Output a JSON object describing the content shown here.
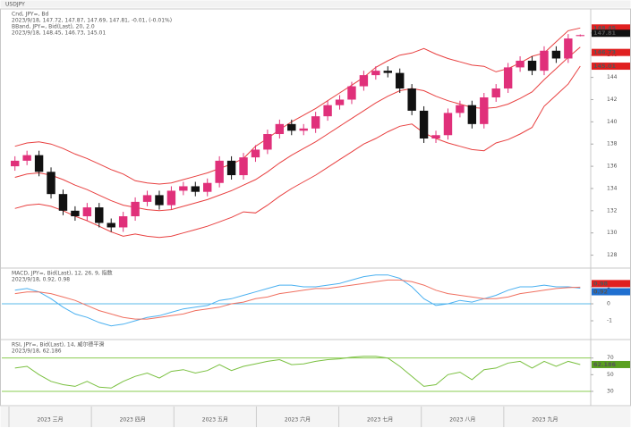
{
  "header": "USDJPY",
  "x_axis": {
    "months": [
      "2023 三月",
      "2023 四月",
      "2023 五月",
      "2023 六月",
      "2023 七月",
      "2023 八月",
      "2023 九月"
    ]
  },
  "chart_data": [
    {
      "type": "candlestick",
      "legend": [
        {
          "text": "Cnd, JPY=, Bd",
          "color": "#333333"
        },
        {
          "text": "2023/9/18, 147.72, 147.87, 147.69, 147.81, -0.01, (-0.01%)",
          "color": "#cc2222"
        },
        {
          "text": "BBand, JPY=, Bid(Last), 20, 2.0",
          "color": "#e84040"
        },
        {
          "text": "2023/9/18, 148.45, 146.73, 145.01",
          "color": "#e84040"
        }
      ],
      "color_up": "#e0307a",
      "color_down": "#111111",
      "open": [
        136.0,
        136.5,
        137.0,
        135.5,
        133.5,
        132.0,
        131.5,
        132.3,
        130.9,
        130.5,
        131.5,
        132.8,
        133.4,
        132.5,
        133.8,
        134.2,
        133.7,
        134.5,
        136.5,
        135.2,
        136.8,
        137.5,
        138.9,
        139.8,
        139.2,
        139.4,
        140.5,
        141.5,
        142.0,
        143.2,
        144.2,
        144.6,
        144.4,
        143.0,
        141.0,
        138.5,
        138.8,
        140.8,
        141.5,
        139.8,
        142.2,
        143.0,
        144.9,
        145.5,
        144.6,
        146.4,
        145.7,
        147.72
      ],
      "high": [
        136.9,
        137.4,
        137.4,
        135.9,
        133.9,
        132.4,
        132.7,
        132.7,
        131.3,
        131.9,
        133.2,
        133.8,
        133.8,
        134.2,
        134.6,
        134.6,
        134.9,
        136.9,
        136.9,
        137.2,
        137.9,
        139.3,
        140.2,
        140.2,
        139.8,
        140.9,
        141.9,
        142.4,
        143.6,
        144.6,
        145.0,
        145.0,
        144.8,
        143.4,
        141.4,
        139.2,
        141.2,
        141.9,
        141.9,
        142.6,
        143.4,
        145.3,
        145.9,
        145.9,
        146.8,
        146.8,
        147.9,
        147.87
      ],
      "low": [
        135.6,
        136.1,
        135.1,
        133.1,
        131.6,
        131.1,
        131.1,
        130.5,
        130.1,
        130.1,
        131.1,
        132.4,
        132.1,
        132.1,
        133.4,
        133.3,
        133.3,
        134.1,
        134.8,
        134.8,
        136.4,
        137.1,
        138.5,
        138.8,
        138.8,
        139.0,
        140.1,
        141.1,
        141.6,
        142.8,
        143.8,
        144.0,
        142.6,
        140.6,
        138.1,
        138.1,
        138.4,
        140.4,
        139.4,
        139.4,
        141.8,
        142.6,
        144.5,
        144.2,
        144.2,
        145.3,
        145.3,
        147.69
      ],
      "close": [
        136.5,
        137.0,
        135.5,
        133.5,
        132.0,
        131.5,
        132.3,
        130.9,
        130.5,
        131.5,
        132.8,
        133.4,
        132.5,
        133.8,
        134.2,
        133.7,
        134.5,
        136.5,
        135.2,
        136.8,
        137.5,
        138.9,
        139.8,
        139.2,
        139.4,
        140.5,
        141.5,
        142.0,
        143.2,
        144.2,
        144.6,
        144.4,
        143.0,
        141.0,
        138.5,
        138.8,
        140.8,
        141.5,
        139.8,
        142.2,
        143.0,
        144.9,
        145.5,
        144.6,
        146.4,
        145.7,
        147.5,
        147.81
      ],
      "close_label_color": "#111111",
      "series": [
        {
          "color": "#e84040",
          "label_color": "#e02020",
          "values": [
            137.8,
            138.1,
            138.2,
            138.0,
            137.6,
            137.1,
            136.7,
            136.2,
            135.7,
            135.3,
            134.7,
            134.5,
            134.4,
            134.5,
            134.8,
            135.1,
            135.4,
            135.8,
            136.2,
            136.7,
            137.8,
            138.5,
            139.3,
            140.0,
            140.6,
            141.2,
            141.9,
            142.6,
            143.3,
            144.0,
            144.9,
            145.5,
            146.0,
            146.2,
            146.6,
            146.1,
            145.7,
            145.4,
            145.1,
            145.0,
            144.5,
            144.8,
            145.3,
            145.9,
            146.2,
            147.2,
            148.2,
            148.45
          ]
        },
        {
          "color": "#e84040",
          "label_color": "#e02020",
          "values": [
            135.0,
            135.3,
            135.4,
            135.2,
            134.8,
            134.3,
            133.9,
            133.4,
            132.9,
            132.5,
            132.3,
            132.1,
            132.0,
            132.1,
            132.4,
            132.7,
            133.0,
            133.4,
            133.8,
            134.3,
            134.8,
            135.5,
            136.3,
            137.0,
            137.6,
            138.2,
            138.9,
            139.6,
            140.3,
            141.0,
            141.7,
            142.3,
            142.8,
            143.0,
            142.8,
            142.3,
            141.9,
            141.6,
            141.3,
            141.2,
            141.3,
            141.6,
            142.1,
            142.7,
            143.8,
            144.8,
            145.8,
            146.73
          ]
        },
        {
          "color": "#e84040",
          "label_color": "#e02020",
          "values": [
            132.2,
            132.5,
            132.6,
            132.4,
            132.0,
            131.5,
            131.1,
            130.6,
            130.1,
            129.7,
            129.9,
            129.7,
            129.6,
            129.7,
            130.0,
            130.3,
            130.6,
            131.0,
            131.4,
            131.9,
            131.8,
            132.5,
            133.3,
            134.0,
            134.6,
            135.2,
            135.9,
            136.6,
            137.3,
            138.0,
            138.5,
            139.1,
            139.6,
            139.8,
            139.0,
            138.5,
            138.1,
            137.8,
            137.5,
            137.4,
            138.1,
            138.4,
            138.9,
            139.5,
            141.4,
            142.4,
            143.4,
            145.01
          ]
        }
      ],
      "ylim": [
        127,
        150
      ],
      "yticks": [
        128,
        130,
        132,
        134,
        136,
        138,
        140,
        142,
        144,
        146,
        148
      ]
    },
    {
      "type": "line",
      "legend": [
        {
          "text": "MACD, JPY=, Bid(Last), 12, 26, 9, 指数",
          "color": "#3a8fd0"
        },
        {
          "text": "2023/9/18, 0.92, 0.98",
          "color": "#3a8fd0"
        }
      ],
      "hlines": [
        0
      ],
      "hline_color": "#5ab8e8",
      "series": [
        {
          "color": "#4ab0f0",
          "label_color": "#1f6fd0",
          "values": [
            0.8,
            0.9,
            0.7,
            0.3,
            -0.2,
            -0.6,
            -0.8,
            -1.1,
            -1.3,
            -1.2,
            -1.0,
            -0.8,
            -0.7,
            -0.5,
            -0.3,
            -0.2,
            -0.1,
            0.2,
            0.3,
            0.5,
            0.7,
            0.9,
            1.1,
            1.1,
            1.0,
            1.0,
            1.1,
            1.2,
            1.4,
            1.6,
            1.7,
            1.7,
            1.5,
            1.0,
            0.3,
            -0.1,
            0.0,
            0.2,
            0.1,
            0.3,
            0.5,
            0.8,
            1.0,
            1.0,
            1.1,
            1.0,
            1.0,
            0.92
          ]
        },
        {
          "color": "#f07060",
          "label_color": "#e02020",
          "values": [
            0.6,
            0.7,
            0.7,
            0.6,
            0.4,
            0.2,
            -0.1,
            -0.4,
            -0.6,
            -0.8,
            -0.9,
            -0.9,
            -0.8,
            -0.7,
            -0.6,
            -0.4,
            -0.3,
            -0.2,
            0.0,
            0.1,
            0.3,
            0.4,
            0.6,
            0.7,
            0.8,
            0.9,
            0.9,
            1.0,
            1.1,
            1.2,
            1.3,
            1.4,
            1.4,
            1.3,
            1.1,
            0.8,
            0.6,
            0.5,
            0.4,
            0.3,
            0.3,
            0.4,
            0.6,
            0.7,
            0.8,
            0.9,
            0.95,
            0.98
          ]
        }
      ],
      "ylim": [
        -2,
        2
      ],
      "yticks": [
        -1,
        0,
        1
      ]
    },
    {
      "type": "line",
      "legend": [
        {
          "text": "RSI, JPY=, Bid(Last), 14, 威尔德平滑",
          "color": "#6aa830"
        },
        {
          "text": "2023/9/18, 62.186",
          "color": "#6aa830"
        }
      ],
      "hlines": [
        70,
        30
      ],
      "hline_color": "#8acc50",
      "series": [
        {
          "color": "#7ac040",
          "label_color": "#5aa020",
          "values": [
            58,
            60,
            50,
            42,
            38,
            36,
            42,
            35,
            34,
            42,
            48,
            52,
            46,
            54,
            56,
            52,
            55,
            62,
            55,
            60,
            63,
            66,
            68,
            62,
            63,
            66,
            68,
            69,
            71,
            72,
            72,
            70,
            60,
            48,
            36,
            38,
            50,
            53,
            44,
            56,
            58,
            64,
            66,
            58,
            66,
            60,
            66,
            62.186
          ]
        }
      ],
      "ylim": [
        15,
        90
      ],
      "yticks": [
        30,
        50,
        70
      ]
    }
  ]
}
